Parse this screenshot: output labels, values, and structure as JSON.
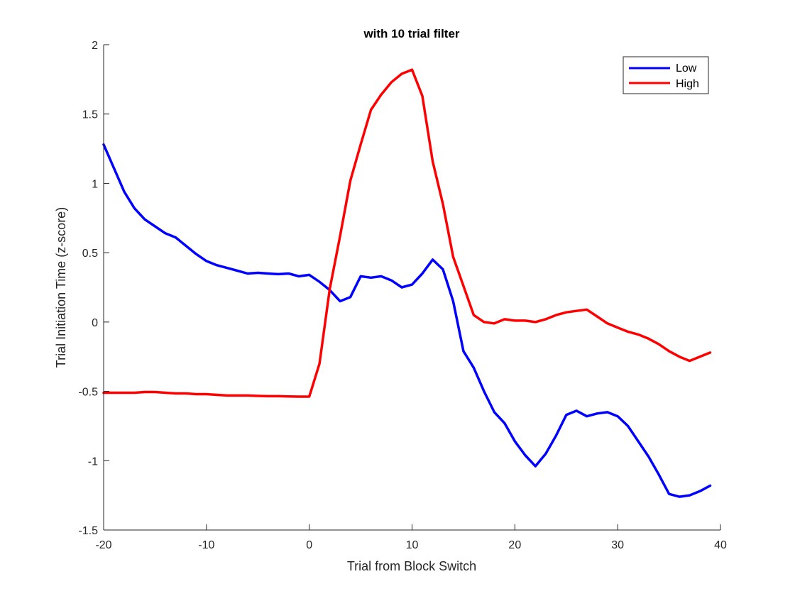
{
  "chart_data": {
    "type": "line",
    "title": "with 10 trial filter",
    "xlabel": "Trial from Block Switch",
    "ylabel": "Trial Initiation Time (z-score)",
    "xlim": [
      -20,
      40
    ],
    "ylim": [
      -1.5,
      2
    ],
    "xticks": [
      -20,
      -10,
      0,
      10,
      20,
      30,
      40
    ],
    "yticks": [
      -1.5,
      -1,
      -0.5,
      0,
      0.5,
      1,
      1.5,
      2
    ],
    "xtick_labels": [
      "-20",
      "-10",
      "0",
      "10",
      "20",
      "30",
      "40"
    ],
    "ytick_labels": [
      "-1.5",
      "-1",
      "-0.5",
      "0",
      "0.5",
      "1",
      "1.5",
      "2"
    ],
    "grid": false,
    "legend_position": "top-right",
    "x": [
      -20,
      -19,
      -18,
      -17,
      -16,
      -15,
      -14,
      -13,
      -12,
      -11,
      -10,
      -9,
      -8,
      -7,
      -6,
      -5,
      -4,
      -3,
      -2,
      -1,
      0,
      1,
      2,
      3,
      4,
      5,
      6,
      7,
      8,
      9,
      10,
      11,
      12,
      13,
      14,
      15,
      16,
      17,
      18,
      19,
      20,
      21,
      22,
      23,
      24,
      25,
      26,
      27,
      28,
      29,
      30,
      31,
      32,
      33,
      34,
      35,
      36,
      37,
      38,
      39
    ],
    "series": [
      {
        "name": "Low",
        "color": "#0000ff",
        "values": [
          1.28,
          1.11,
          0.94,
          0.82,
          0.74,
          0.69,
          0.64,
          0.61,
          0.55,
          0.49,
          0.44,
          0.41,
          0.39,
          0.37,
          0.35,
          0.355,
          0.35,
          0.345,
          0.35,
          0.33,
          0.34,
          0.29,
          0.23,
          0.15,
          0.18,
          0.33,
          0.32,
          0.33,
          0.3,
          0.25,
          0.27,
          0.35,
          0.45,
          0.38,
          0.15,
          -0.21,
          -0.33,
          -0.5,
          -0.65,
          -0.73,
          -0.86,
          -0.96,
          -1.04,
          -0.95,
          -0.82,
          -0.67,
          -0.64,
          -0.68,
          -0.66,
          -0.65,
          -0.68,
          -0.75,
          -0.86,
          -0.97,
          -1.1,
          -1.24,
          -1.26,
          -1.25,
          -1.22,
          -1.18
        ]
      },
      {
        "name": "High",
        "color": "#ff0000",
        "values": [
          -0.51,
          -0.51,
          -0.51,
          -0.51,
          -0.505,
          -0.505,
          -0.51,
          -0.515,
          -0.515,
          -0.52,
          -0.52,
          -0.525,
          -0.53,
          -0.53,
          -0.53,
          -0.533,
          -0.535,
          -0.535,
          -0.537,
          -0.538,
          -0.538,
          -0.3,
          0.24,
          0.62,
          1.02,
          1.28,
          1.53,
          1.64,
          1.73,
          1.79,
          1.82,
          1.63,
          1.16,
          0.85,
          0.47,
          0.26,
          0.05,
          0.0,
          -0.01,
          0.02,
          0.01,
          0.01,
          0.0,
          0.02,
          0.05,
          0.07,
          0.08,
          0.09,
          0.04,
          -0.01,
          -0.04,
          -0.07,
          -0.09,
          -0.12,
          -0.16,
          -0.21,
          -0.25,
          -0.28,
          -0.25,
          -0.22
        ]
      }
    ]
  }
}
